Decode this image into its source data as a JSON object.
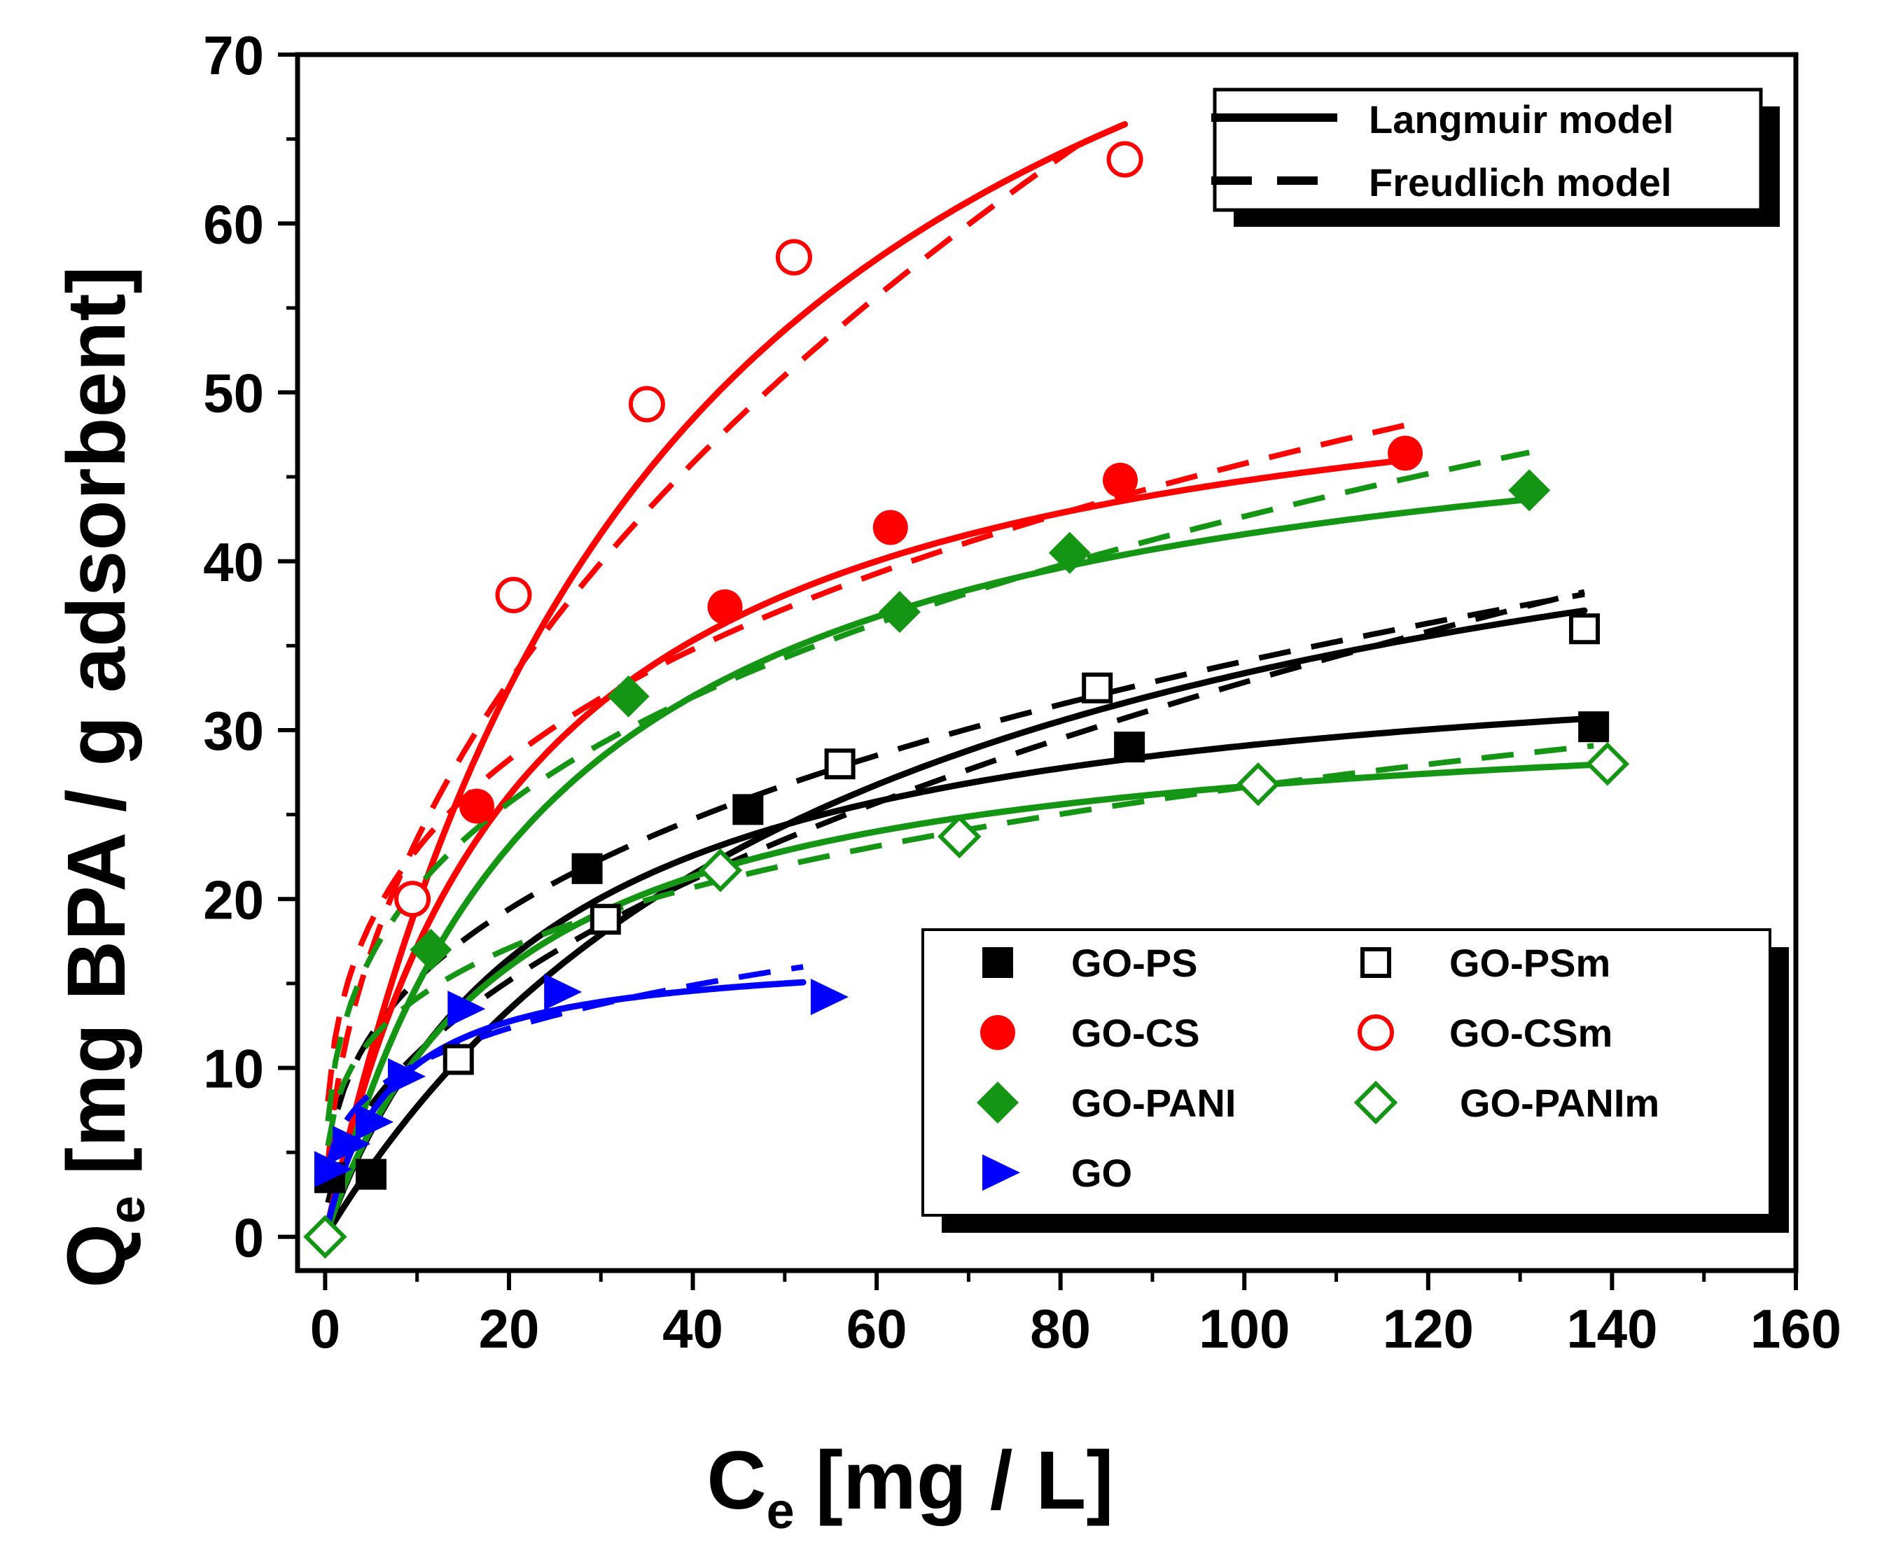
{
  "chart_data": {
    "type": "scatter",
    "title": "",
    "xlabel": "C",
    "xlabel_sub": "e",
    "xlabel_unit": "[mg / L]",
    "ylabel": "Q",
    "ylabel_sub": "e",
    "ylabel_unit": "[mg BPA / g adsorbent]",
    "xlim": [
      -3,
      160
    ],
    "ylim": [
      -2,
      70
    ],
    "xticks": [
      0,
      20,
      40,
      60,
      80,
      100,
      120,
      140,
      160
    ],
    "yticks": [
      0,
      10,
      20,
      30,
      40,
      50,
      60,
      70
    ],
    "xtick_labels": [
      "0",
      "20",
      "40",
      "60",
      "80",
      "100",
      "120",
      "140",
      "160"
    ],
    "ytick_labels": [
      "0",
      "10",
      "20",
      "30",
      "40",
      "50",
      "60",
      "70"
    ],
    "grid": false,
    "model_legend": {
      "position": "top-right",
      "entries": [
        {
          "label": "Langmuir model",
          "style": "solid"
        },
        {
          "label": "Freudlich model",
          "style": "dashed"
        }
      ]
    },
    "legend_position": "bottom-right",
    "series": [
      {
        "name": "GO-PS",
        "color": "#000000",
        "marker": "square-filled",
        "points": [
          [
            0.5,
            3.5
          ],
          [
            5,
            3.7
          ],
          [
            28.5,
            21.8
          ],
          [
            46,
            25.3
          ],
          [
            87.5,
            29
          ],
          [
            138,
            30.2
          ]
        ],
        "langmuir": {
          "qmax": 36,
          "K": 0.042,
          "xmax": 138
        },
        "freundlich": {
          "Kf": 6.8,
          "n": 0.35,
          "xmax": 137
        }
      },
      {
        "name": "GO-PSm",
        "color": "#000000",
        "marker": "square-open",
        "points": [
          [
            14.5,
            10.5
          ],
          [
            30.5,
            18.8
          ],
          [
            56,
            28
          ],
          [
            84,
            32.5
          ],
          [
            137,
            36
          ]
        ],
        "langmuir": {
          "qmax": 53,
          "K": 0.017,
          "xmax": 137
        },
        "freundlich": {
          "Kf": 3.6,
          "n": 0.48,
          "xmax": 137
        }
      },
      {
        "name": "GO-CS",
        "color": "#ff0000",
        "marker": "circle-filled",
        "points": [
          [
            16.5,
            25.5
          ],
          [
            43.5,
            37.3
          ],
          [
            61.5,
            42
          ],
          [
            86.5,
            44.8
          ],
          [
            117.5,
            46.4
          ]
        ],
        "langmuir": {
          "qmax": 54.5,
          "K": 0.046,
          "xmax": 117
        },
        "freundlich": {
          "Kf": 11.5,
          "n": 0.3,
          "xmax": 118
        }
      },
      {
        "name": "GO-CSm",
        "color": "#ff0000",
        "marker": "circle-open",
        "points": [
          [
            9.5,
            20
          ],
          [
            20.5,
            38
          ],
          [
            35,
            49.3
          ],
          [
            51,
            58
          ],
          [
            87,
            63.8
          ]
        ],
        "langmuir": {
          "qmax": 95,
          "K": 0.026,
          "xmax": 87
        },
        "freundlich": {
          "Kf": 7.8,
          "n": 0.48,
          "xmax": 84
        }
      },
      {
        "name": "GO-PANI",
        "color": "#149614",
        "marker": "diamond-filled",
        "points": [
          [
            0,
            0
          ],
          [
            11.5,
            17
          ],
          [
            33,
            32
          ],
          [
            62.5,
            37
          ],
          [
            81,
            40.5
          ],
          [
            131,
            44.2
          ]
        ],
        "langmuir": {
          "qmax": 52,
          "K": 0.04,
          "xmax": 131
        },
        "freundlich": {
          "Kf": 10,
          "n": 0.315,
          "xmax": 131
        }
      },
      {
        "name": "GO-PANIm",
        "color": "#149614",
        "marker": "diamond-open",
        "points": [
          [
            0,
            0
          ],
          [
            43,
            21.7
          ],
          [
            69,
            23.7
          ],
          [
            101.5,
            26.8
          ],
          [
            139.5,
            28
          ]
        ],
        "langmuir": {
          "qmax": 32,
          "K": 0.05,
          "xmax": 138
        },
        "freundlich": {
          "Kf": 7.5,
          "n": 0.275,
          "xmax": 138
        }
      },
      {
        "name": "GO",
        "color": "#0000ff",
        "marker": "triangle-right-filled",
        "points": [
          [
            0.5,
            4
          ],
          [
            2.5,
            5.5
          ],
          [
            5,
            6.8
          ],
          [
            8.5,
            9.5
          ],
          [
            15,
            13.5
          ],
          [
            25.5,
            14.5
          ],
          [
            54.5,
            14.2
          ]
        ],
        "langmuir": {
          "qmax": 17,
          "K": 0.15,
          "xmax": 52
        },
        "freundlich": {
          "Kf": 5.5,
          "n": 0.27,
          "xmax": 52
        }
      }
    ]
  }
}
